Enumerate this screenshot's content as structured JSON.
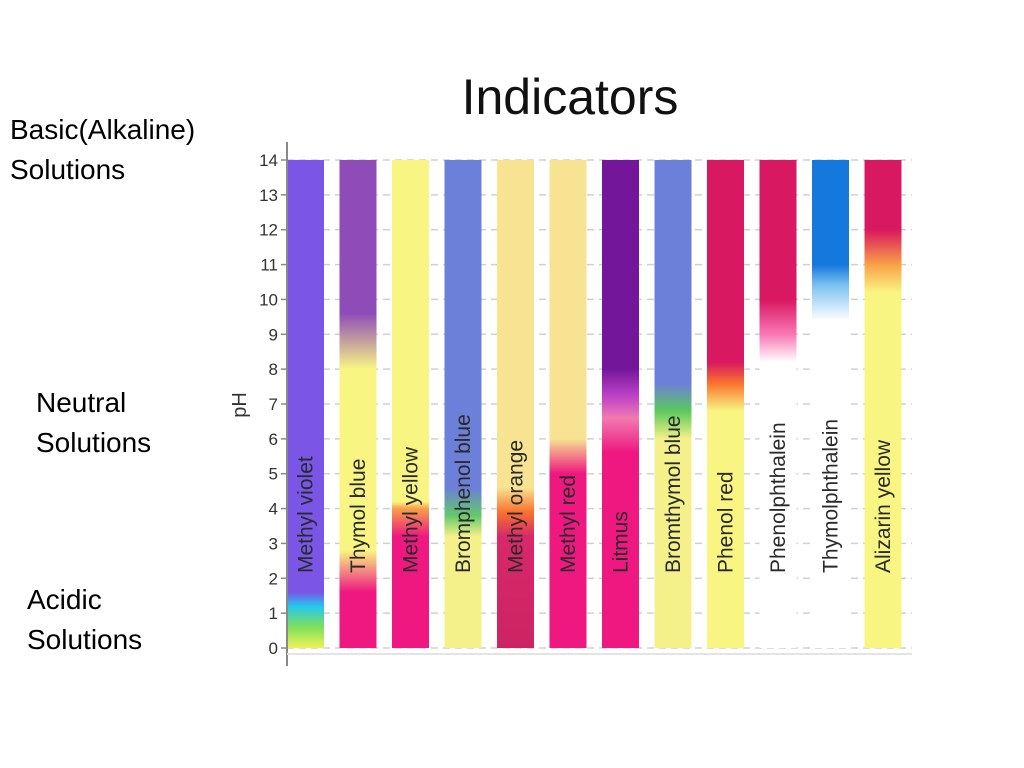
{
  "side_labels": {
    "basic": [
      "Basic(Alkaline)",
      "Solutions"
    ],
    "neutral": [
      "Neutral",
      "Solutions"
    ],
    "acidic": [
      "Acidic",
      "Solutions"
    ]
  },
  "chart_data": {
    "type": "bar",
    "title": "Indicators",
    "ylabel": "pH",
    "xlabel": "",
    "ylim": [
      0,
      14
    ],
    "yticks": [
      "0",
      "1",
      "2",
      "3",
      "4",
      "5",
      "6",
      "7",
      "8",
      "9",
      "10",
      "11",
      "12",
      "13",
      "14"
    ],
    "grid": true,
    "series": [
      {
        "name": "Methyl violet",
        "stops": [
          {
            "ph": 0,
            "color": "#eef25a"
          },
          {
            "ph": 0.6,
            "color": "#7fe05a"
          },
          {
            "ph": 1.2,
            "color": "#25c8ee"
          },
          {
            "ph": 1.6,
            "color": "#7a55e6"
          },
          {
            "ph": 14,
            "color": "#7a55e6"
          }
        ]
      },
      {
        "name": "Thymol blue",
        "stops": [
          {
            "ph": 0,
            "color": "#ee1880"
          },
          {
            "ph": 1.6,
            "color": "#ee1880"
          },
          {
            "ph": 2.8,
            "color": "#f9f583"
          },
          {
            "ph": 8.0,
            "color": "#f9f583"
          },
          {
            "ph": 9.6,
            "color": "#8e4cb8"
          },
          {
            "ph": 14,
            "color": "#8e4cb8"
          }
        ]
      },
      {
        "name": "Methyl yellow",
        "stops": [
          {
            "ph": 0,
            "color": "#ee1880"
          },
          {
            "ph": 3.2,
            "color": "#ee1880"
          },
          {
            "ph": 4.0,
            "color": "#f9a048"
          },
          {
            "ph": 4.2,
            "color": "#f9f583"
          },
          {
            "ph": 14,
            "color": "#f9f583"
          }
        ]
      },
      {
        "name": "Bromphenol blue",
        "stops": [
          {
            "ph": 0,
            "color": "#f4f08a"
          },
          {
            "ph": 3.2,
            "color": "#f4f08a"
          },
          {
            "ph": 3.8,
            "color": "#63c96a"
          },
          {
            "ph": 4.6,
            "color": "#6c7fd9"
          },
          {
            "ph": 14,
            "color": "#6c7fd9"
          }
        ]
      },
      {
        "name": "Methyl orange",
        "stops": [
          {
            "ph": 0,
            "color": "#cc2463"
          },
          {
            "ph": 3.2,
            "color": "#d8286a"
          },
          {
            "ph": 3.9,
            "color": "#f9722e"
          },
          {
            "ph": 4.6,
            "color": "#f7e392"
          },
          {
            "ph": 14,
            "color": "#f7e392"
          }
        ]
      },
      {
        "name": "Methyl red",
        "stops": [
          {
            "ph": 0,
            "color": "#ee1880"
          },
          {
            "ph": 5.0,
            "color": "#ee1880"
          },
          {
            "ph": 6.0,
            "color": "#f7e392"
          },
          {
            "ph": 14,
            "color": "#f7e392"
          }
        ]
      },
      {
        "name": "Litmus",
        "stops": [
          {
            "ph": 0,
            "color": "#ee1880"
          },
          {
            "ph": 5.6,
            "color": "#ee1880"
          },
          {
            "ph": 6.6,
            "color": "#f07ab0"
          },
          {
            "ph": 7.2,
            "color": "#c044c8"
          },
          {
            "ph": 8.0,
            "color": "#74169a"
          },
          {
            "ph": 14,
            "color": "#74169a"
          }
        ]
      },
      {
        "name": "Bromthymol blue",
        "stops": [
          {
            "ph": 0,
            "color": "#f4f08a"
          },
          {
            "ph": 6.0,
            "color": "#f4f08a"
          },
          {
            "ph": 6.8,
            "color": "#5cc95c"
          },
          {
            "ph": 7.6,
            "color": "#6c7fd9"
          },
          {
            "ph": 14,
            "color": "#6c7fd9"
          }
        ]
      },
      {
        "name": "Phenol red",
        "stops": [
          {
            "ph": 0,
            "color": "#f9f583"
          },
          {
            "ph": 6.8,
            "color": "#f9f583"
          },
          {
            "ph": 7.6,
            "color": "#f9722e"
          },
          {
            "ph": 8.2,
            "color": "#d81860"
          },
          {
            "ph": 14,
            "color": "#d81860"
          }
        ]
      },
      {
        "name": "Phenolphthalein",
        "stops": [
          {
            "ph": 0,
            "color": "#ffffff"
          },
          {
            "ph": 8.2,
            "color": "#ffffff"
          },
          {
            "ph": 9.0,
            "color": "#f878b4"
          },
          {
            "ph": 10.0,
            "color": "#d81860"
          },
          {
            "ph": 14,
            "color": "#d81860"
          }
        ]
      },
      {
        "name": "Thymolphthalein",
        "stops": [
          {
            "ph": 0,
            "color": "#ffffff"
          },
          {
            "ph": 9.4,
            "color": "#ffffff"
          },
          {
            "ph": 10.4,
            "color": "#7cc2f0"
          },
          {
            "ph": 11.0,
            "color": "#1478dc"
          },
          {
            "ph": 14,
            "color": "#1478dc"
          }
        ]
      },
      {
        "name": "Alizarin yellow",
        "stops": [
          {
            "ph": 0,
            "color": "#f9f583"
          },
          {
            "ph": 10.2,
            "color": "#f9f583"
          },
          {
            "ph": 11.0,
            "color": "#f9a048"
          },
          {
            "ph": 12.0,
            "color": "#d81860"
          },
          {
            "ph": 14,
            "color": "#d81860"
          }
        ]
      }
    ]
  }
}
